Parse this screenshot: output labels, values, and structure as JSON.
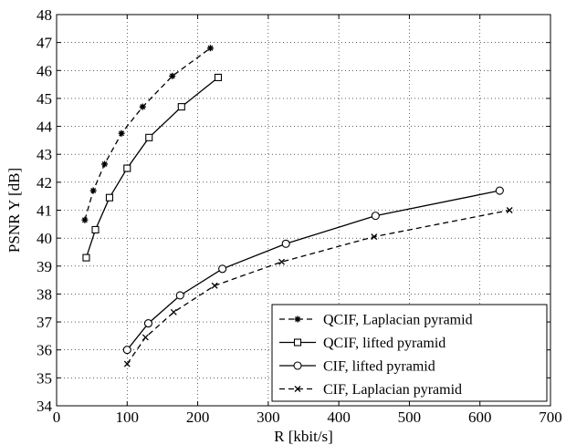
{
  "chart_data": {
    "type": "line",
    "xlabel": "R [kbit/s]",
    "ylabel": "PSNR Y [dB]",
    "xlim": [
      0,
      700
    ],
    "ylim": [
      34,
      48
    ],
    "xticks": [
      0,
      100,
      200,
      300,
      400,
      500,
      600,
      700
    ],
    "yticks": [
      34,
      35,
      36,
      37,
      38,
      39,
      40,
      41,
      42,
      43,
      44,
      45,
      46,
      47,
      48
    ],
    "grid": true,
    "legend_position": "bottom-right",
    "series": [
      {
        "name": "QCIF, Laplacian pyramid",
        "line_style": "dashed",
        "marker": "asterisk",
        "color": "#000000",
        "x": [
          40,
          52,
          68,
          92,
          122,
          164,
          218
        ],
        "y": [
          40.65,
          41.7,
          42.65,
          43.75,
          44.7,
          45.8,
          46.8
        ]
      },
      {
        "name": "QCIF, lifted pyramid",
        "line_style": "solid",
        "marker": "square",
        "color": "#000000",
        "x": [
          42,
          55,
          75,
          100,
          131,
          177,
          229
        ],
        "y": [
          39.3,
          40.3,
          41.45,
          42.5,
          43.6,
          44.7,
          45.75
        ]
      },
      {
        "name": "CIF, lifted pyramid",
        "line_style": "solid",
        "marker": "circle",
        "color": "#000000",
        "x": [
          100,
          130,
          175,
          235,
          325,
          452,
          628
        ],
        "y": [
          36.0,
          36.95,
          37.95,
          38.9,
          39.8,
          40.8,
          41.7
        ]
      },
      {
        "name": "CIF, Laplacian pyramid",
        "line_style": "dashed",
        "marker": "x",
        "color": "#000000",
        "x": [
          100,
          126,
          166,
          224,
          319,
          450,
          642
        ],
        "y": [
          35.5,
          36.45,
          37.35,
          38.3,
          39.15,
          40.05,
          41.0
        ]
      }
    ]
  }
}
